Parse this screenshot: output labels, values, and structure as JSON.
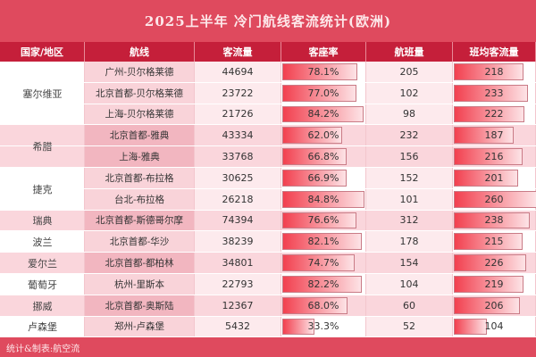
{
  "title": "2025上半年 冷门航线客流统计(欧洲)",
  "headers": [
    "国家/地区",
    "航线",
    "客流量",
    "客座率",
    "航班量",
    "班均客流量"
  ],
  "groups": [
    {
      "country": "塞尔维亚",
      "rows": [
        [
          "广州-贝尔格莱德",
          44694,
          78.1,
          205,
          218
        ],
        [
          "北京首都-贝尔格莱德",
          23722,
          77.0,
          102,
          233
        ],
        [
          "上海-贝尔格莱德",
          21726,
          84.2,
          98,
          222
        ]
      ]
    },
    {
      "country": "希腊",
      "rows": [
        [
          "北京首都-雅典",
          43334,
          62.0,
          232,
          187
        ],
        [
          "上海-雅典",
          33768,
          66.8,
          156,
          216
        ]
      ]
    },
    {
      "country": "捷克",
      "rows": [
        [
          "北京首都-布拉格",
          30625,
          66.9,
          152,
          201
        ],
        [
          "台北-布拉格",
          26218,
          84.8,
          101,
          260
        ]
      ]
    },
    {
      "country": "瑞典",
      "rows": [
        [
          "北京首都-斯德哥尔摩",
          74394,
          76.6,
          312,
          238
        ]
      ]
    },
    {
      "country": "波兰",
      "rows": [
        [
          "北京首都-华沙",
          38239,
          82.1,
          178,
          215
        ]
      ]
    },
    {
      "country": "爱尔兰",
      "rows": [
        [
          "北京首都-都柏林",
          34801,
          74.7,
          154,
          226
        ]
      ]
    },
    {
      "country": "葡萄牙",
      "rows": [
        [
          "杭州-里斯本",
          22793,
          82.2,
          104,
          219
        ]
      ]
    },
    {
      "country": "挪威",
      "rows": [
        [
          "北京首都-奥斯陆",
          12367,
          68.0,
          60,
          206
        ]
      ]
    },
    {
      "country": "卢森堡",
      "rows": [
        [
          "郑州-卢森堡",
          5432,
          33.3,
          52,
          104
        ]
      ]
    }
  ],
  "footer": "统计&制表:航空流",
  "colors": {
    "title": "#df4a5e",
    "header": "#c51f3a",
    "bar": "#f2404f"
  }
}
